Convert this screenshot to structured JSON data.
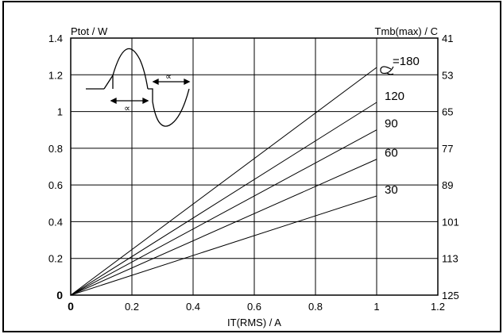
{
  "chart_data": {
    "type": "line",
    "ylabel_left": "Ptot / W",
    "ylabel_right": "Tmb(max) / C",
    "xlabel": "IT(RMS) / A",
    "xlim": [
      0,
      1.2
    ],
    "ylim": [
      0,
      1.4
    ],
    "grid": true,
    "x_ticks": [
      "0",
      "0.2",
      "0.4",
      "0.6",
      "0.8",
      "1",
      "1.2"
    ],
    "y_ticks_left": [
      "0",
      "0.2",
      "0.4",
      "0.6",
      "0.8",
      "1",
      "1.2",
      "1.4"
    ],
    "y_ticks_right": [
      "125",
      "113",
      "101",
      "89",
      "77",
      "65",
      "53",
      "41"
    ],
    "series": [
      {
        "name": "=180",
        "x": [
          0,
          1.0
        ],
        "y": [
          0,
          1.24
        ]
      },
      {
        "name": "120",
        "x": [
          0,
          1.0
        ],
        "y": [
          0,
          1.05
        ]
      },
      {
        "name": "90",
        "x": [
          0,
          1.0
        ],
        "y": [
          0,
          0.9
        ]
      },
      {
        "name": "60",
        "x": [
          0,
          1.0
        ],
        "y": [
          0,
          0.74
        ]
      },
      {
        "name": "30",
        "x": [
          0,
          1.0
        ],
        "y": [
          0,
          0.54
        ]
      }
    ],
    "inset": {
      "description_symbol": "∝"
    }
  }
}
